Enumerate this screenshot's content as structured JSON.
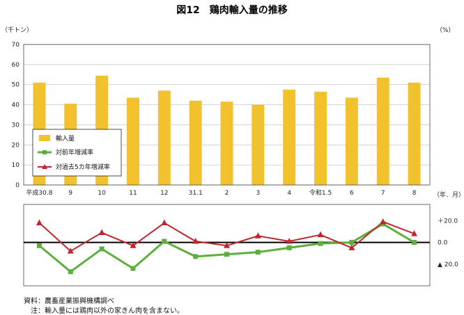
{
  "chart_data": {
    "title": "図12　鶏肉輸入量の推移",
    "categories": [
      "平成30.8",
      "9",
      "10",
      "11",
      "12",
      "31.1",
      "2",
      "3",
      "4",
      "令和1.5",
      "6",
      "7",
      "8"
    ],
    "x_unit_label": "（年．月）",
    "panels": [
      {
        "type": "bar",
        "unit_label": "（千トン）",
        "ylim": [
          0,
          70
        ],
        "y_ticks": [
          "0",
          "10",
          "20",
          "30",
          "40",
          "50",
          "60",
          "70"
        ],
        "grid": true,
        "series": [
          {
            "name": "輸入量",
            "color": "#F2C12E",
            "values": [
              51,
              40.5,
              54.5,
              43.5,
              47,
              42,
              41.5,
              40,
              47.5,
              46.5,
              43.5,
              53.5,
              51
            ]
          }
        ]
      },
      {
        "type": "line",
        "unit_label": "（%）",
        "ylim": [
          -40,
          35
        ],
        "y_ticks": [
          "＋20.0",
          "0.0",
          "▲ 20.0"
        ],
        "y_tick_values": [
          20,
          0,
          -20
        ],
        "zero_line": true,
        "series": [
          {
            "name": "対前年増減率",
            "color": "#5BAF3C",
            "marker": "square",
            "values": [
              -3,
              -27,
              -6,
              -24,
              1,
              -13,
              -11,
              -9,
              -5,
              -1,
              0,
              17,
              0
            ]
          },
          {
            "name": "対過去5カ年増減率",
            "color": "#C0272D",
            "marker": "triangle",
            "values": [
              18,
              -8,
              9,
              -3,
              18,
              1,
              -3,
              6,
              1,
              7,
              -5,
              19,
              8
            ]
          }
        ]
      }
    ],
    "legend_position": "bottom-left of upper panel"
  },
  "notes": {
    "source": "資料：農畜産業振興機構調べ",
    "note": "注：輸入量には鶏肉以外の家きん肉を含まない。"
  }
}
